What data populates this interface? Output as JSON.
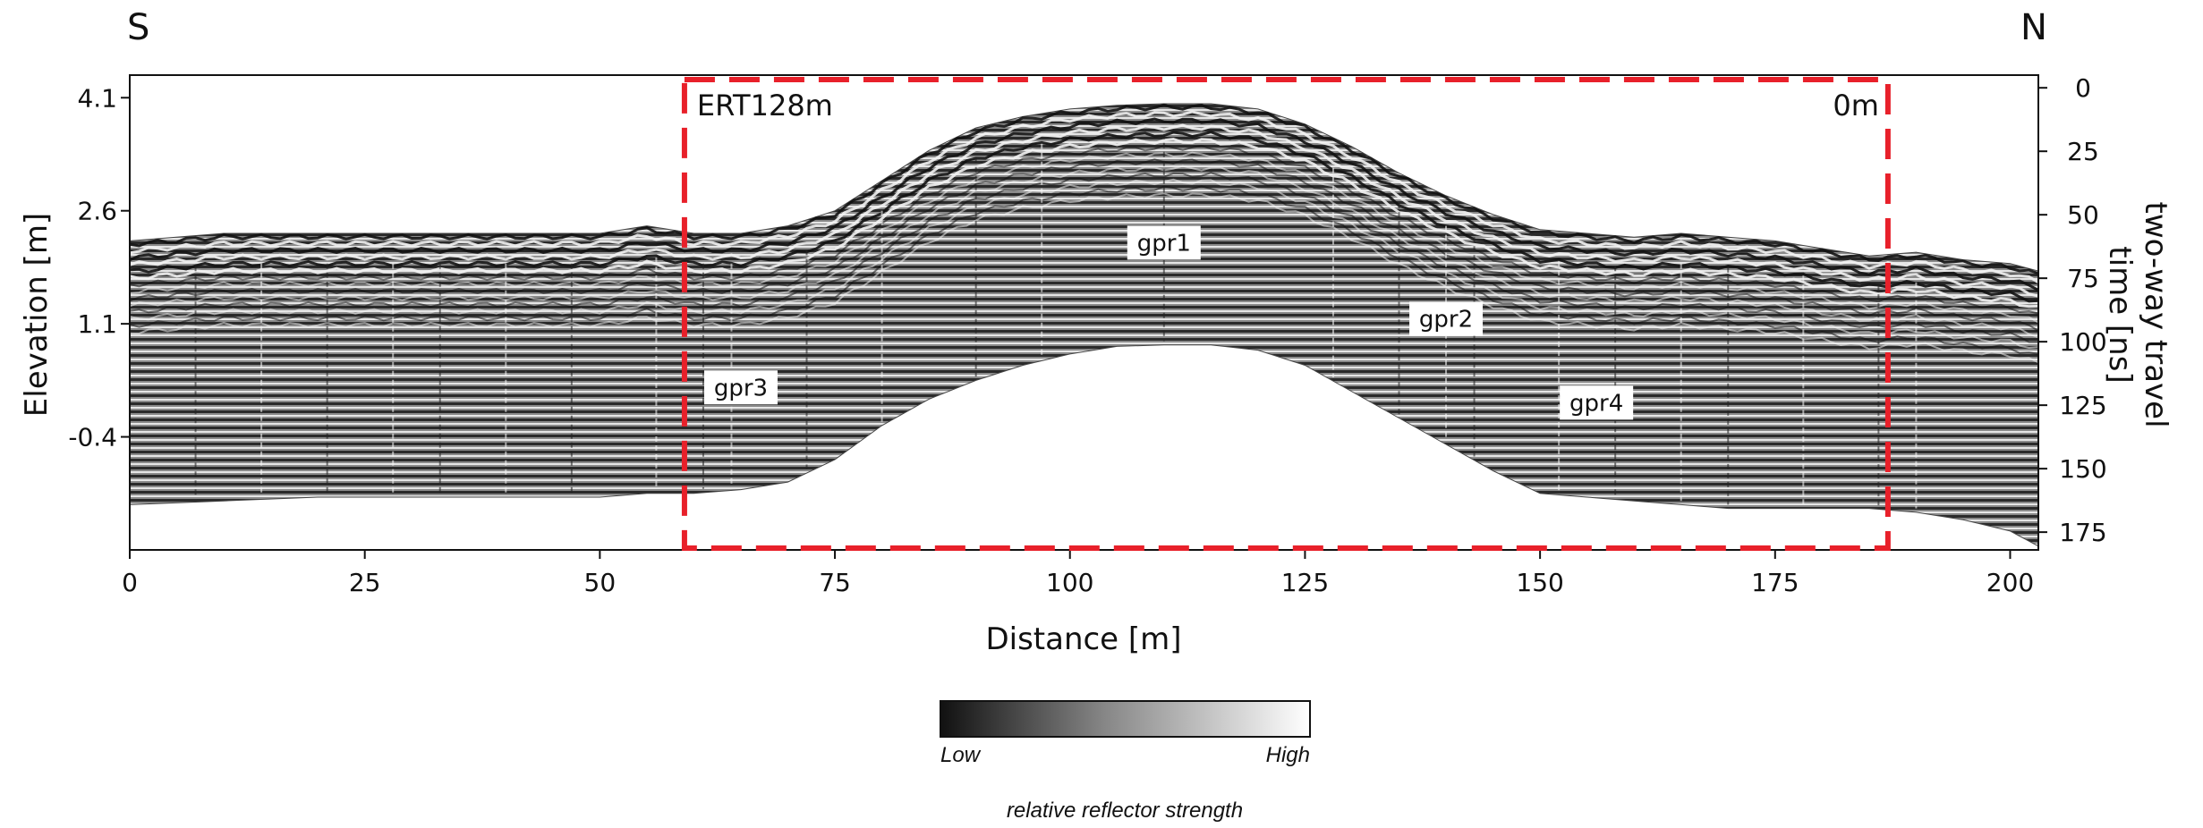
{
  "chart_data": {
    "type": "heatmap",
    "title": "",
    "compass": {
      "left": "S",
      "right": "N"
    },
    "xlabel": "Distance [m]",
    "ylabel_left": "Elevation [m]",
    "ylabel_right": "two-way travel time [ns]",
    "ylabel_right_lines": [
      "two-way travel",
      "time [ns]"
    ],
    "xlim": [
      0,
      203
    ],
    "x_ticks": [
      0,
      25,
      50,
      75,
      100,
      125,
      150,
      175,
      200
    ],
    "x_tick_labels": [
      "0",
      "25",
      "50",
      "75",
      "100",
      "125",
      "150",
      "175",
      "200"
    ],
    "ylim_left": [
      -1.9,
      4.4
    ],
    "y_ticks_left": [
      4.1,
      2.6,
      1.1,
      -0.4
    ],
    "y_tick_labels_left": [
      "4.1",
      "2.6",
      "1.1",
      "-0.4"
    ],
    "ylim_right_ns": [
      -5,
      182
    ],
    "y_ticks_right": [
      0,
      25,
      50,
      75,
      100,
      125,
      150,
      175
    ],
    "y_tick_labels_right": [
      "0",
      "25",
      "50",
      "75",
      "100",
      "125",
      "150",
      "175"
    ],
    "surface_profile": {
      "x": [
        0,
        10,
        20,
        30,
        40,
        50,
        55,
        60,
        65,
        70,
        75,
        80,
        85,
        90,
        95,
        100,
        105,
        110,
        115,
        120,
        125,
        130,
        135,
        140,
        145,
        150,
        155,
        160,
        165,
        170,
        175,
        180,
        185,
        190,
        195,
        200,
        203
      ],
      "top_elevation": [
        2.2,
        2.3,
        2.3,
        2.3,
        2.3,
        2.3,
        2.4,
        2.3,
        2.3,
        2.4,
        2.6,
        3.0,
        3.4,
        3.7,
        3.85,
        3.95,
        4.0,
        4.02,
        4.02,
        3.95,
        3.75,
        3.45,
        3.1,
        2.8,
        2.55,
        2.35,
        2.3,
        2.25,
        2.3,
        2.25,
        2.2,
        2.1,
        2.0,
        2.05,
        1.95,
        1.9,
        1.8
      ],
      "bottom_elevation": [
        -1.3,
        -1.25,
        -1.2,
        -1.2,
        -1.2,
        -1.2,
        -1.15,
        -1.15,
        -1.1,
        -1.0,
        -0.7,
        -0.25,
        0.1,
        0.35,
        0.55,
        0.7,
        0.8,
        0.82,
        0.82,
        0.75,
        0.55,
        0.2,
        -0.15,
        -0.5,
        -0.85,
        -1.15,
        -1.2,
        -1.25,
        -1.3,
        -1.35,
        -1.35,
        -1.35,
        -1.35,
        -1.4,
        -1.5,
        -1.65,
        -1.85
      ]
    },
    "ert_box": {
      "x_start": 59,
      "x_end": 187,
      "label_left": "ERT128m",
      "label_right": "0m",
      "color": "#e8202a"
    },
    "annotations": [
      {
        "text": "gpr1",
        "x": 110,
        "y_ns": 61
      },
      {
        "text": "gpr2",
        "x": 140,
        "y_ns": 91
      },
      {
        "text": "gpr3",
        "x": 65,
        "y_ns": 118
      },
      {
        "text": "gpr4",
        "x": 156,
        "y_ns": 124
      }
    ],
    "colorbar": {
      "low_label": "Low",
      "high_label": "High",
      "title": "relative reflector strength",
      "low_color": "#111111",
      "high_color": "#ffffff"
    }
  }
}
